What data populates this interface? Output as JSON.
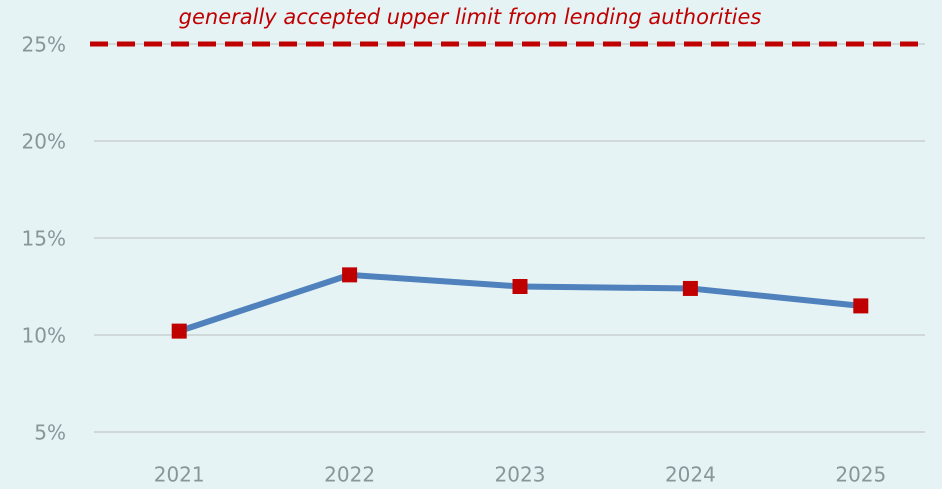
{
  "chart_data": {
    "type": "line",
    "categories": [
      "2021",
      "2022",
      "2023",
      "2024",
      "2025"
    ],
    "values": [
      10.2,
      13.1,
      12.5,
      12.4,
      11.5
    ],
    "color": "#4f81bd",
    "marker_color": "#c00000",
    "ylim": [
      5,
      25
    ],
    "yticks": [
      {
        "value": 5,
        "label": "5%"
      },
      {
        "value": 10,
        "label": "10%"
      },
      {
        "value": 15,
        "label": "15%"
      },
      {
        "value": 20,
        "label": "20%"
      },
      {
        "value": 25,
        "label": "25%"
      }
    ],
    "grid": true,
    "reference_line": {
      "value": 25,
      "label": "generally accepted upper limit from lending authorities",
      "color": "#c00000"
    }
  }
}
